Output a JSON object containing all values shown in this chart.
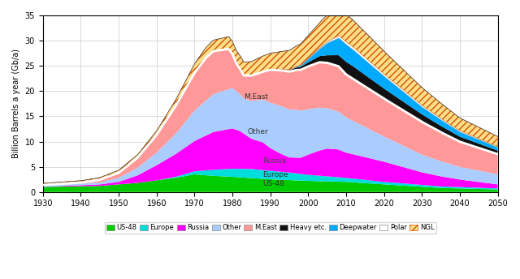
{
  "ylabel": "Billion Barrels a year (Gb/a)",
  "xlim": [
    1930,
    2050
  ],
  "ylim": [
    0,
    35
  ],
  "xticks": [
    1930,
    1940,
    1950,
    1960,
    1970,
    1980,
    1990,
    2000,
    2010,
    2020,
    2030,
    2040,
    2050
  ],
  "yticks": [
    0,
    5,
    10,
    15,
    20,
    25,
    30,
    35
  ],
  "layers": [
    "US-48",
    "Europe",
    "Russia",
    "Other",
    "M.East",
    "Heavy etc.",
    "Deepwater",
    "Polar",
    "NGL"
  ],
  "colors": {
    "US-48": "#00cc00",
    "Europe": "#00dddd",
    "Russia": "#ff00ff",
    "Other": "#aaccff",
    "M.East": "#ff9999",
    "Heavy etc.": "#111111",
    "Deepwater": "#00aaff",
    "Polar": "#ffffff",
    "NGL": "#ffaa00"
  }
}
